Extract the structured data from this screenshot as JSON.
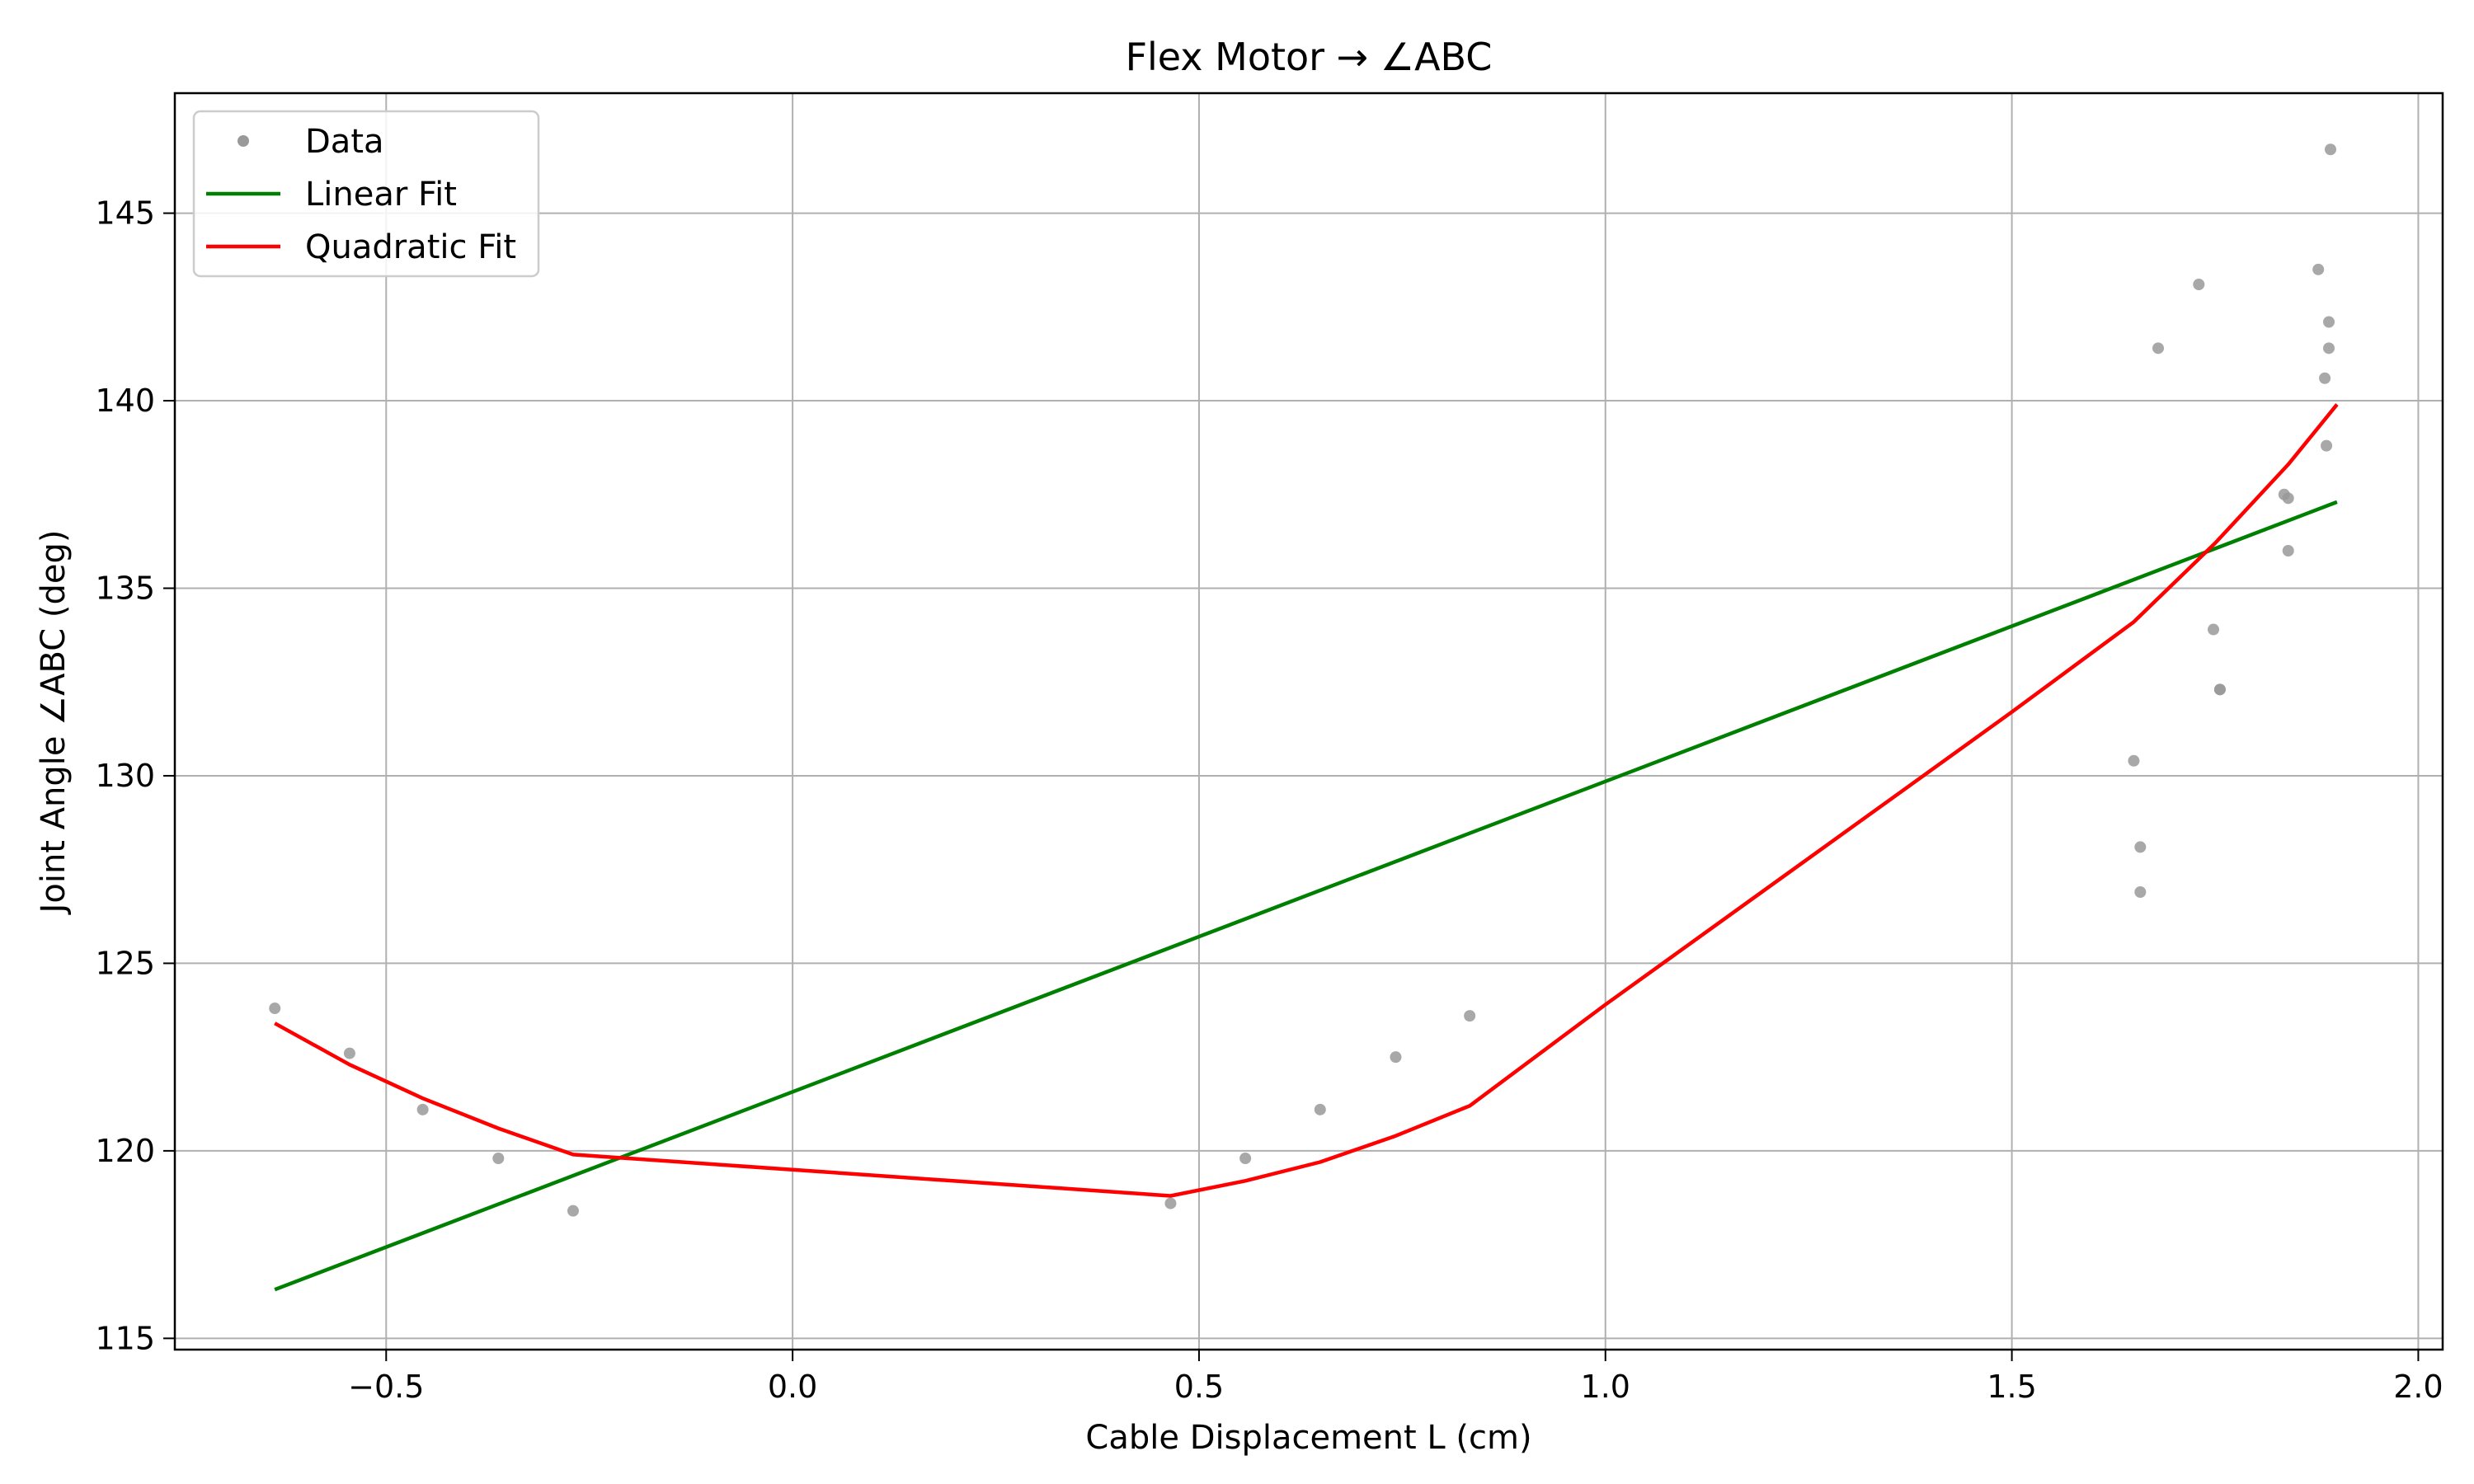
{
  "chart_data": {
    "type": "scatter",
    "title": "Flex Motor → ∠ABC",
    "xlabel": "Cable Displacement L (cm)",
    "ylabel": "Joint Angle ∠ABC (deg)",
    "xlim": [
      -0.76,
      2.03
    ],
    "ylim": [
      114.7,
      148.2
    ],
    "xticks": [
      -0.5,
      0.0,
      0.5,
      1.0,
      1.5,
      2.0
    ],
    "xtick_labels": [
      "−0.5",
      "0.0",
      "0.5",
      "1.0",
      "1.5",
      "2.0"
    ],
    "yticks": [
      115,
      120,
      125,
      130,
      135,
      140,
      145
    ],
    "ytick_labels": [
      "115",
      "120",
      "125",
      "130",
      "135",
      "140",
      "145"
    ],
    "grid": true,
    "legend_position": "top-left",
    "series": [
      {
        "name": "Data",
        "kind": "scatter",
        "color": "#999999",
        "points": [
          [
            -0.637,
            123.8
          ],
          [
            -0.545,
            122.6
          ],
          [
            -0.455,
            121.1
          ],
          [
            -0.362,
            119.8
          ],
          [
            -0.27,
            118.4
          ],
          [
            0.465,
            118.6
          ],
          [
            0.557,
            119.8
          ],
          [
            0.649,
            121.1
          ],
          [
            0.742,
            122.5
          ],
          [
            0.833,
            123.6
          ],
          [
            1.65,
            130.4
          ],
          [
            1.658,
            128.1
          ],
          [
            1.658,
            126.9
          ],
          [
            1.68,
            141.4
          ],
          [
            1.73,
            143.1
          ],
          [
            1.748,
            133.9
          ],
          [
            1.756,
            132.3
          ],
          [
            1.756,
            132.3
          ],
          [
            1.835,
            137.5
          ],
          [
            1.84,
            137.4
          ],
          [
            1.84,
            136.0
          ],
          [
            1.877,
            143.5
          ],
          [
            1.885,
            140.6
          ],
          [
            1.887,
            138.8
          ],
          [
            1.89,
            141.4
          ],
          [
            1.89,
            142.1
          ],
          [
            1.892,
            146.7
          ]
        ]
      },
      {
        "name": "Linear Fit",
        "kind": "line",
        "color": "#008000",
        "points": [
          [
            -0.637,
            116.3
          ],
          [
            1.9,
            137.3
          ]
        ]
      },
      {
        "name": "Quadratic Fit",
        "kind": "line",
        "color": "#ff0000",
        "points": [
          [
            -0.637,
            123.4
          ],
          [
            -0.545,
            122.3
          ],
          [
            -0.455,
            121.4
          ],
          [
            -0.362,
            120.6
          ],
          [
            -0.27,
            119.9
          ],
          [
            0.465,
            118.8
          ],
          [
            0.557,
            119.2
          ],
          [
            0.649,
            119.7
          ],
          [
            0.742,
            120.4
          ],
          [
            0.833,
            121.2
          ],
          [
            1.0,
            123.9
          ],
          [
            1.5,
            131.7
          ],
          [
            1.65,
            134.1
          ],
          [
            1.75,
            136.2
          ],
          [
            1.84,
            138.3
          ],
          [
            1.9,
            139.9
          ]
        ]
      }
    ]
  }
}
